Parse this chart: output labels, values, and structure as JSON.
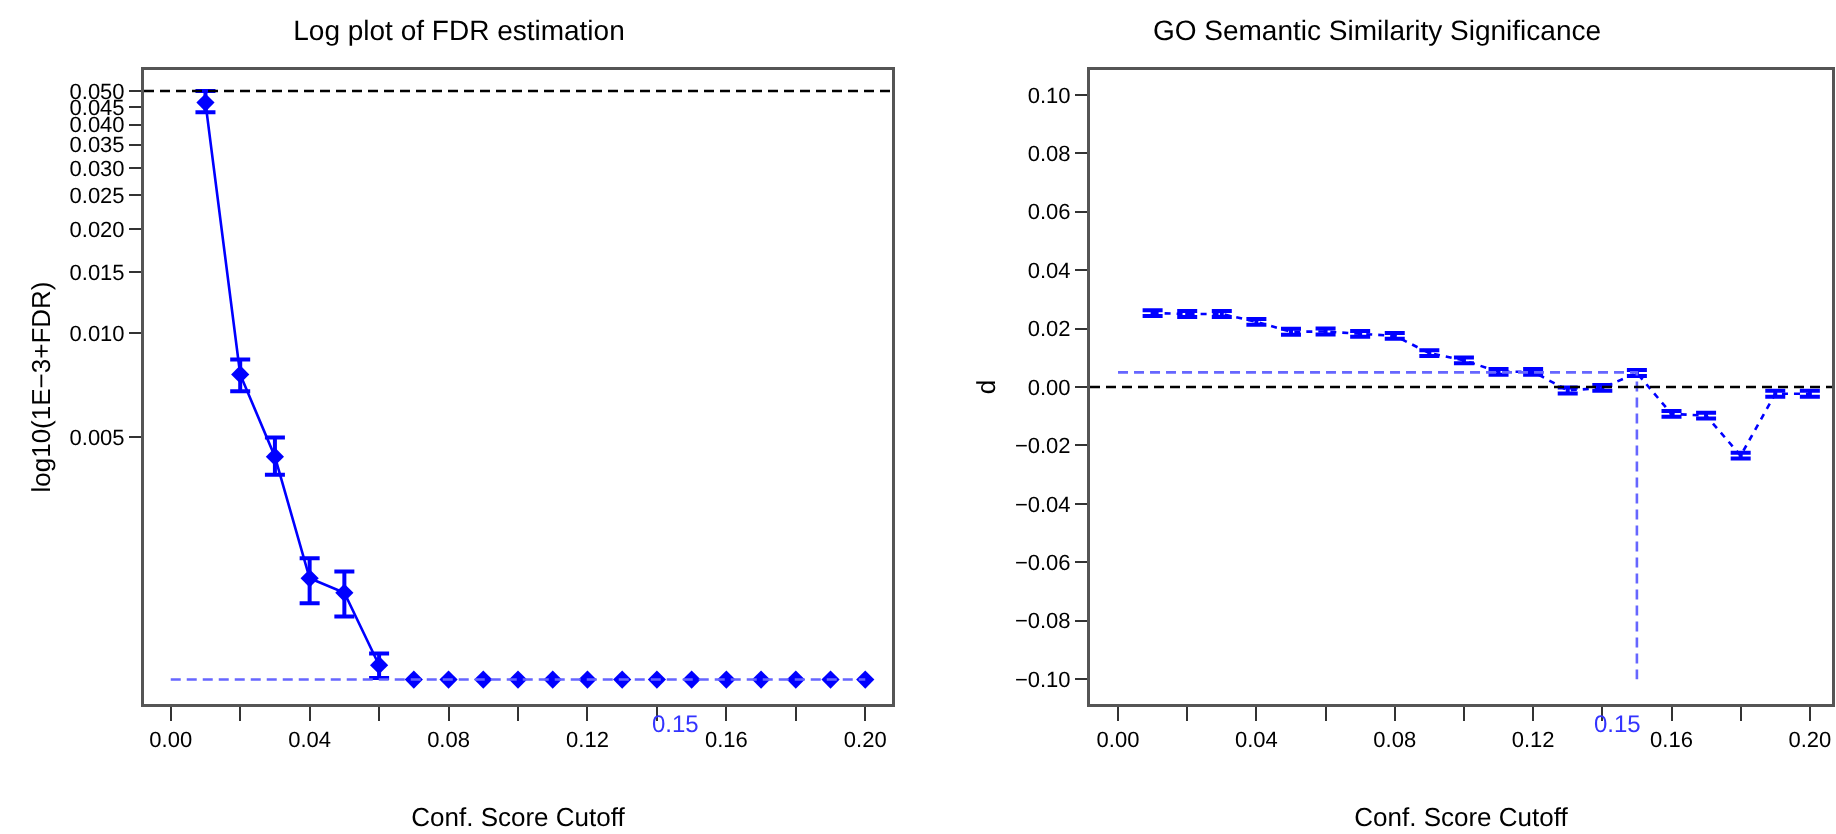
{
  "chart_data": [
    {
      "type": "line",
      "title": "Log plot of FDR estimation",
      "xlabel": "Conf. Score Cutoff",
      "ylabel": "log10(1E−3+FDR)",
      "log": "y",
      "grid": false,
      "xlim": [
        -0.0077,
        0.2077
      ],
      "ylim": [
        0.00085,
        0.0575
      ],
      "xticks": [
        {
          "value": 0,
          "label": "0.00"
        },
        {
          "value": 0.02,
          "label": null
        },
        {
          "value": 0.04,
          "label": "0.04"
        },
        {
          "value": 0.06,
          "label": null
        },
        {
          "value": 0.08,
          "label": "0.08"
        },
        {
          "value": 0.1,
          "label": null
        },
        {
          "value": 0.12,
          "label": "0.12"
        },
        {
          "value": 0.14,
          "label": null
        },
        {
          "value": 0.16,
          "label": "0.16"
        },
        {
          "value": 0.18,
          "label": null
        },
        {
          "value": 0.2,
          "label": "0.20"
        }
      ],
      "yticks": [
        0.005,
        {
          "value": 0.01,
          "label": "0.010"
        },
        0.015,
        {
          "value": 0.02,
          "label": "0.020"
        },
        0.025,
        {
          "value": 0.03,
          "label": "0.030"
        },
        0.035,
        {
          "value": 0.04,
          "label": "0.040"
        },
        0.045,
        {
          "value": 0.05,
          "label": "0.050"
        }
      ],
      "series": [
        {
          "color": "#0000ff",
          "marker": "diamond",
          "line_style": "solid",
          "x": [
            0.01,
            0.02,
            0.03,
            0.04,
            0.05,
            0.06
          ],
          "values": [
            0.0463,
            0.0076,
            0.0044,
            0.00196,
            0.00178,
            0.0011
          ],
          "errors": [
            [
              0.0434,
              0.05
            ],
            [
              0.0068,
              0.0084
            ],
            [
              0.0039,
              0.005
            ],
            [
              0.00166,
              0.00224
            ],
            [
              0.00152,
              0.00205
            ],
            [
              0.00101,
              0.00119
            ]
          ]
        },
        {
          "type": "scatter",
          "color": "#0000ff",
          "marker": "diamond",
          "x": [
            0.07,
            0.08,
            0.09,
            0.1,
            0.11,
            0.12,
            0.13,
            0.14,
            0.15,
            0.16,
            0.17,
            0.18,
            0.19,
            0.2
          ],
          "values": [
            0.001,
            0.001,
            0.001,
            0.001,
            0.001,
            0.001,
            0.001,
            0.001,
            0.001,
            0.001,
            0.001,
            0.001,
            0.001,
            0.001
          ]
        },
        {
          "color": "#6666ff",
          "marker": "none",
          "line_style": "dashed",
          "x": [
            0,
            0.2
          ],
          "values": [
            0.001,
            0.001
          ]
        }
      ],
      "ref_lines": [
        {
          "axis": "y",
          "value": 0.05,
          "color": "#000000",
          "line_style": "dashed"
        }
      ],
      "annotations": [
        "0.15"
      ]
    },
    {
      "type": "line",
      "title": "GO Semantic Similarity Significance",
      "xlabel": "Conf. Score Cutoff",
      "ylabel": "d",
      "grid": false,
      "xlim": [
        -0.0081,
        0.2064
      ],
      "ylim": [
        -0.1085,
        0.1085
      ],
      "xticks": [
        {
          "value": 0,
          "label": "0.00"
        },
        {
          "value": 0.02,
          "label": null
        },
        {
          "value": 0.04,
          "label": "0.04"
        },
        {
          "value": 0.06,
          "label": null
        },
        {
          "value": 0.08,
          "label": "0.08"
        },
        {
          "value": 0.1,
          "label": null
        },
        {
          "value": 0.12,
          "label": "0.12"
        },
        {
          "value": 0.14,
          "label": null
        },
        {
          "value": 0.16,
          "label": "0.16"
        },
        {
          "value": 0.18,
          "label": null
        },
        {
          "value": 0.2,
          "label": "0.20"
        }
      ],
      "yticks": [
        {
          "value": -0.1,
          "label": "−0.10"
        },
        {
          "value": -0.08,
          "label": "−0.08"
        },
        {
          "value": -0.06,
          "label": "−0.06"
        },
        {
          "value": -0.04,
          "label": "−0.04"
        },
        {
          "value": -0.02,
          "label": "−0.02"
        },
        {
          "value": 0,
          "label": "0.00"
        },
        {
          "value": 0.02,
          "label": "0.02"
        },
        {
          "value": 0.04,
          "label": "0.04"
        },
        {
          "value": 0.06,
          "label": "0.06"
        },
        {
          "value": 0.08,
          "label": "0.08"
        },
        {
          "value": 0.1,
          "label": "0.10"
        }
      ],
      "series": [
        {
          "color": "#0000ff",
          "marker": "none",
          "line_style": "dotted",
          "x": [
            0.01,
            0.02,
            0.03,
            0.04,
            0.05,
            0.06,
            0.07,
            0.08,
            0.09,
            0.1,
            0.11,
            0.12,
            0.13,
            0.14,
            0.15,
            0.16,
            0.17,
            0.18,
            0.19,
            0.2
          ],
          "values": [
            0.0253,
            0.025,
            0.025,
            0.0223,
            0.0189,
            0.019,
            0.0182,
            0.0175,
            0.0116,
            0.0091,
            0.0052,
            0.0052,
            -0.0012,
            -0.0003,
            0.0048,
            -0.0092,
            -0.0098,
            -0.0235,
            -0.0023,
            -0.0023
          ],
          "errors": [
            0.001,
            0.001,
            0.001,
            0.001,
            0.001,
            0.001,
            0.001,
            0.001,
            0.001,
            0.001,
            0.001,
            0.001,
            0.001,
            0.001,
            0.001,
            0.001,
            0.001,
            0.001,
            0.001,
            0.001
          ]
        },
        {
          "color": "#6666ff",
          "marker": "none",
          "line_style": "dashed",
          "x": [
            0,
            0.15,
            0.15
          ],
          "values": [
            0.005,
            0.005,
            -0.1
          ]
        }
      ],
      "ref_lines": [
        {
          "axis": "y",
          "value": 0,
          "color": "#000000",
          "line_style": "dashed"
        }
      ],
      "annotations": [
        "0.15"
      ]
    }
  ]
}
